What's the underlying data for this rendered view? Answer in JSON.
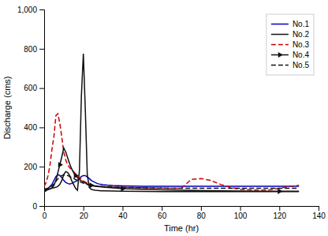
{
  "chart_data": {
    "type": "line",
    "xlabel": "Time (hr)",
    "ylabel": "Discharge (cms)",
    "xlim": [
      0,
      140
    ],
    "ylim": [
      0,
      1000
    ],
    "xticks": [
      0,
      20,
      40,
      60,
      80,
      100,
      120,
      140
    ],
    "yticks": [
      0,
      200,
      400,
      600,
      800,
      {
        "value": 1000,
        "label": "1,000"
      }
    ],
    "grid": false,
    "legend": "upper-right",
    "series": [
      {
        "name": "No.1",
        "color": "#0000bb",
        "line_style": "solid",
        "x": [
          0,
          1,
          2,
          3,
          4,
          5,
          6,
          7,
          8,
          9,
          10,
          11,
          12,
          13,
          14,
          15,
          16,
          17,
          18,
          19,
          20,
          21,
          22,
          23,
          24,
          25,
          26,
          27,
          28,
          29,
          30,
          32,
          35,
          40,
          45,
          50,
          55,
          60,
          70,
          80,
          90,
          100,
          110,
          120,
          130
        ],
        "values": [
          80,
          85,
          90,
          100,
          110,
          130,
          150,
          160,
          155,
          145,
          130,
          120,
          115,
          112,
          115,
          120,
          125,
          130,
          140,
          150,
          155,
          155,
          148,
          140,
          130,
          125,
          120,
          115,
          112,
          110,
          108,
          106,
          104,
          102,
          101,
          100,
          100,
          100,
          100,
          100,
          100,
          100,
          100,
          100,
          100
        ]
      },
      {
        "name": "No.2",
        "color": "#111111",
        "line_style": "solid",
        "x": [
          0,
          1,
          2,
          3,
          4,
          5,
          6,
          7,
          8,
          9,
          10,
          11,
          12,
          13,
          14,
          15,
          16,
          17,
          18,
          19,
          20,
          21,
          22,
          23,
          24,
          25,
          26,
          27,
          28,
          29,
          30,
          35,
          40,
          50,
          60,
          70,
          80,
          90,
          100,
          110,
          120,
          130
        ],
        "values": [
          80,
          83,
          85,
          88,
          90,
          93,
          95,
          100,
          110,
          130,
          160,
          175,
          170,
          155,
          130,
          110,
          90,
          80,
          180,
          560,
          775,
          490,
          160,
          95,
          85,
          82,
          80,
          79,
          78,
          77,
          77,
          76,
          75,
          74,
          73,
          73,
          73,
          73,
          73,
          73,
          73,
          73
        ]
      },
      {
        "name": "No.3",
        "color": "#cc0000",
        "line_style": "dashed",
        "x": [
          0,
          1,
          2,
          3,
          4,
          5,
          6,
          7,
          8,
          9,
          10,
          11,
          12,
          13,
          14,
          15,
          16,
          17,
          18,
          19,
          20,
          21,
          22,
          23,
          24,
          25,
          26,
          27,
          28,
          29,
          30,
          32,
          35,
          40,
          45,
          50,
          55,
          60,
          65,
          70,
          75,
          80,
          85,
          90,
          95,
          100,
          105,
          110,
          115,
          120,
          125,
          130
        ],
        "values": [
          100,
          120,
          155,
          210,
          290,
          355,
          460,
          470,
          420,
          350,
          275,
          235,
          210,
          195,
          185,
          175,
          165,
          155,
          145,
          135,
          128,
          122,
          117,
          112,
          108,
          105,
          103,
          101,
          100,
          99,
          98,
          97,
          96,
          95,
          94,
          93,
          92,
          91,
          90,
          90,
          135,
          140,
          130,
          110,
          95,
          85,
          82,
          80,
          82,
          90,
          100,
          105
        ]
      },
      {
        "name": "No.4",
        "color": "#111111",
        "line_style": "solid",
        "marker": "triangle-right",
        "x": [
          0,
          1,
          2,
          3,
          4,
          5,
          6,
          7,
          8,
          9,
          10,
          11,
          12,
          13,
          14,
          15,
          16,
          17,
          18,
          19,
          20,
          21,
          22,
          23,
          24,
          25,
          26,
          27,
          28,
          29,
          30,
          35,
          40,
          50,
          60,
          70,
          80,
          90,
          100,
          110,
          120,
          130
        ],
        "values": [
          78,
          80,
          83,
          87,
          93,
          105,
          130,
          170,
          210,
          250,
          295,
          275,
          245,
          215,
          190,
          170,
          155,
          145,
          135,
          128,
          122,
          117,
          112,
          108,
          105,
          102,
          100,
          99,
          98,
          97,
          96,
          92,
          88,
          85,
          82,
          80,
          78,
          77,
          76,
          75,
          75,
          75
        ]
      },
      {
        "name": "No.5",
        "color": "#111111",
        "line_style": "dashed",
        "x": [
          0,
          1,
          2,
          3,
          4,
          5,
          6,
          7,
          8,
          9,
          10,
          11,
          12,
          13,
          14,
          15,
          16,
          17,
          18,
          19,
          20,
          21,
          22,
          23,
          24,
          25,
          26,
          27,
          28,
          29,
          30,
          35,
          40,
          50,
          60,
          70,
          80,
          90,
          100,
          110,
          120,
          130
        ],
        "values": [
          85,
          88,
          90,
          95,
          102,
          112,
          125,
          138,
          148,
          155,
          158,
          158,
          155,
          150,
          145,
          140,
          135,
          130,
          125,
          120,
          116,
          112,
          109,
          107,
          105,
          103,
          102,
          101,
          100,
          100,
          99,
          97,
          95,
          93,
          91,
          90,
          90,
          90,
          90,
          90,
          90,
          90
        ]
      }
    ]
  }
}
